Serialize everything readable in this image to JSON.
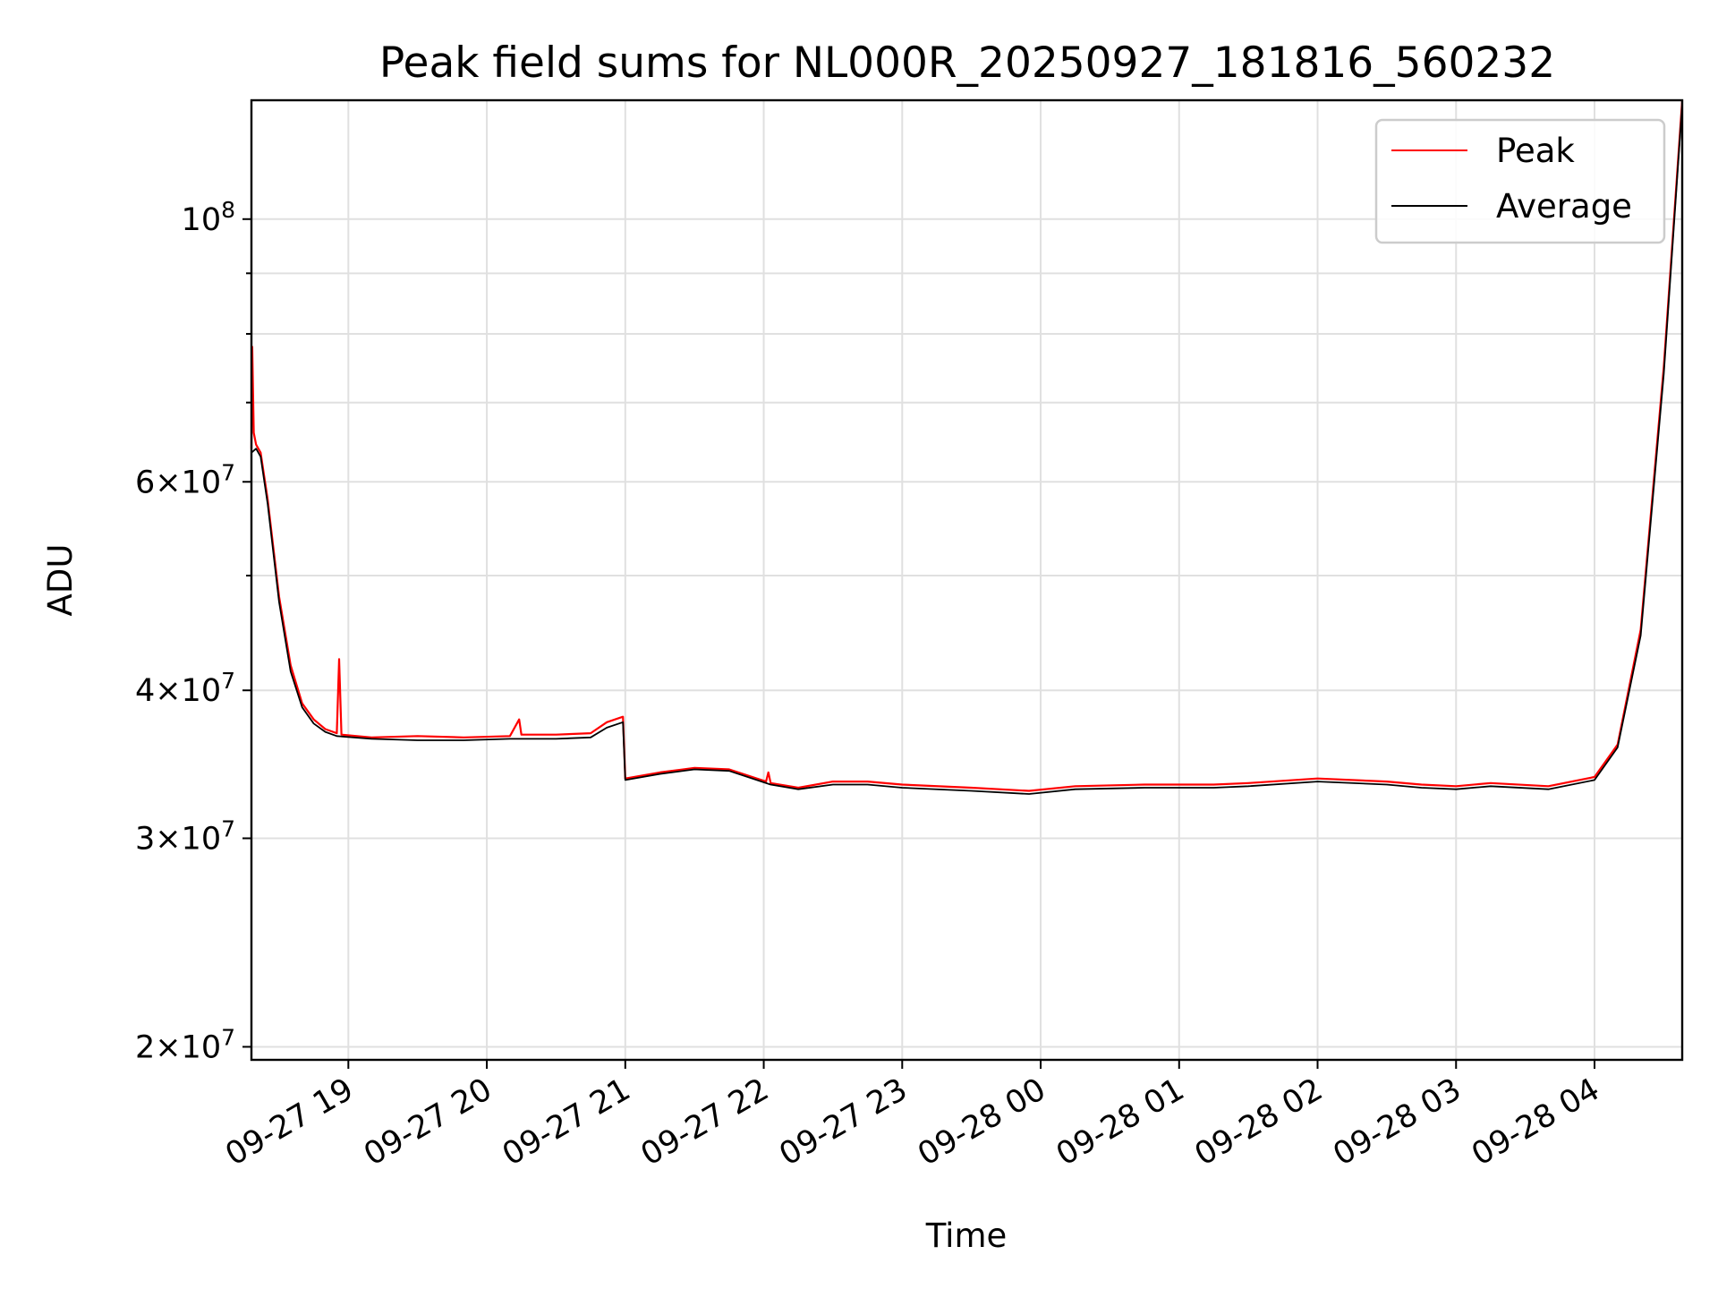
{
  "chart_data": {
    "type": "line",
    "title": "Peak field sums for NL000R_20250927_181816_560232",
    "xlabel": "Time",
    "ylabel": "ADU",
    "y_scale": "log",
    "ylim": [
      19500000,
      126000000
    ],
    "xlim": [
      "2025-09-27 18:18",
      "2025-09-28 04:38"
    ],
    "grid": true,
    "legend_position": "top-right",
    "x_ticks": [
      {
        "t": "2025-09-27 19:00",
        "label": "09-27 19"
      },
      {
        "t": "2025-09-27 20:00",
        "label": "09-27 20"
      },
      {
        "t": "2025-09-27 21:00",
        "label": "09-27 21"
      },
      {
        "t": "2025-09-27 22:00",
        "label": "09-27 22"
      },
      {
        "t": "2025-09-27 23:00",
        "label": "09-27 23"
      },
      {
        "t": "2025-09-28 00:00",
        "label": "09-28 00"
      },
      {
        "t": "2025-09-28 01:00",
        "label": "09-28 01"
      },
      {
        "t": "2025-09-28 02:00",
        "label": "09-28 02"
      },
      {
        "t": "2025-09-28 03:00",
        "label": "09-28 03"
      },
      {
        "t": "2025-09-28 04:00",
        "label": "09-28 04"
      }
    ],
    "y_major_ticks": [
      {
        "value": 20000000,
        "mant": "2",
        "exp": "7"
      },
      {
        "value": 30000000,
        "mant": "3",
        "exp": "7"
      },
      {
        "value": 40000000,
        "mant": "4",
        "exp": "7"
      },
      {
        "value": 60000000,
        "mant": "6",
        "exp": "7"
      },
      {
        "value": 100000000,
        "mant": "",
        "exp": "8"
      }
    ],
    "y_minor_ticks": [
      50000000,
      70000000,
      80000000,
      90000000
    ],
    "series": [
      {
        "name": "Peak",
        "color": "#ff0000",
        "points": [
          [
            "2025-09-27 18:18",
            64000000
          ],
          [
            "2025-09-27 18:18:20",
            78000000
          ],
          [
            "2025-09-27 18:19",
            66000000
          ],
          [
            "2025-09-27 18:20",
            64500000
          ],
          [
            "2025-09-27 18:22",
            63500000
          ],
          [
            "2025-09-27 18:25",
            58000000
          ],
          [
            "2025-09-27 18:30",
            48000000
          ],
          [
            "2025-09-27 18:35",
            42000000
          ],
          [
            "2025-09-27 18:40",
            39000000
          ],
          [
            "2025-09-27 18:45",
            37800000
          ],
          [
            "2025-09-27 18:50",
            37100000
          ],
          [
            "2025-09-27 18:55",
            36800000
          ],
          [
            "2025-09-27 18:56",
            42500000
          ],
          [
            "2025-09-27 18:57",
            36700000
          ],
          [
            "2025-09-27 19:10",
            36500000
          ],
          [
            "2025-09-27 19:30",
            36600000
          ],
          [
            "2025-09-27 19:50",
            36500000
          ],
          [
            "2025-09-27 20:10",
            36600000
          ],
          [
            "2025-09-27 20:14",
            37800000
          ],
          [
            "2025-09-27 20:15",
            36700000
          ],
          [
            "2025-09-27 20:30",
            36700000
          ],
          [
            "2025-09-27 20:45",
            36800000
          ],
          [
            "2025-09-27 20:52",
            37600000
          ],
          [
            "2025-09-27 20:59",
            38000000
          ],
          [
            "2025-09-27 21:00",
            33700000
          ],
          [
            "2025-09-27 21:15",
            34100000
          ],
          [
            "2025-09-27 21:30",
            34400000
          ],
          [
            "2025-09-27 21:45",
            34300000
          ],
          [
            "2025-09-27 22:01",
            33500000
          ],
          [
            "2025-09-27 22:02",
            34100000
          ],
          [
            "2025-09-27 22:03",
            33400000
          ],
          [
            "2025-09-27 22:15",
            33100000
          ],
          [
            "2025-09-27 22:30",
            33500000
          ],
          [
            "2025-09-27 22:45",
            33500000
          ],
          [
            "2025-09-27 23:00",
            33300000
          ],
          [
            "2025-09-27 23:30",
            33100000
          ],
          [
            "2025-09-27 23:55",
            32900000
          ],
          [
            "2025-09-28 00:15",
            33200000
          ],
          [
            "2025-09-28 00:45",
            33300000
          ],
          [
            "2025-09-28 01:15",
            33300000
          ],
          [
            "2025-09-28 01:30",
            33400000
          ],
          [
            "2025-09-28 02:00",
            33700000
          ],
          [
            "2025-09-28 02:30",
            33500000
          ],
          [
            "2025-09-28 02:45",
            33300000
          ],
          [
            "2025-09-28 03:00",
            33200000
          ],
          [
            "2025-09-28 03:15",
            33400000
          ],
          [
            "2025-09-28 03:40",
            33200000
          ],
          [
            "2025-09-28 04:00",
            33800000
          ],
          [
            "2025-09-28 04:10",
            36000000
          ],
          [
            "2025-09-28 04:20",
            45000000
          ],
          [
            "2025-09-28 04:30",
            75000000
          ],
          [
            "2025-09-28 04:38",
            126000000
          ]
        ]
      },
      {
        "name": "Average",
        "color": "#000000",
        "points": [
          [
            "2025-09-27 18:18",
            63500000
          ],
          [
            "2025-09-27 18:20",
            64000000
          ],
          [
            "2025-09-27 18:22",
            63000000
          ],
          [
            "2025-09-27 18:25",
            57500000
          ],
          [
            "2025-09-27 18:30",
            47500000
          ],
          [
            "2025-09-27 18:35",
            41500000
          ],
          [
            "2025-09-27 18:40",
            38700000
          ],
          [
            "2025-09-27 18:45",
            37500000
          ],
          [
            "2025-09-27 18:50",
            36900000
          ],
          [
            "2025-09-27 18:55",
            36600000
          ],
          [
            "2025-09-27 19:10",
            36400000
          ],
          [
            "2025-09-27 19:30",
            36300000
          ],
          [
            "2025-09-27 19:50",
            36300000
          ],
          [
            "2025-09-27 20:10",
            36400000
          ],
          [
            "2025-09-27 20:30",
            36400000
          ],
          [
            "2025-09-27 20:45",
            36500000
          ],
          [
            "2025-09-27 20:52",
            37200000
          ],
          [
            "2025-09-27 20:59",
            37600000
          ],
          [
            "2025-09-27 21:00",
            33600000
          ],
          [
            "2025-09-27 21:15",
            34000000
          ],
          [
            "2025-09-27 21:30",
            34300000
          ],
          [
            "2025-09-27 21:45",
            34200000
          ],
          [
            "2025-09-27 22:03",
            33300000
          ],
          [
            "2025-09-27 22:15",
            33000000
          ],
          [
            "2025-09-27 22:30",
            33300000
          ],
          [
            "2025-09-27 22:45",
            33300000
          ],
          [
            "2025-09-27 23:00",
            33100000
          ],
          [
            "2025-09-27 23:30",
            32900000
          ],
          [
            "2025-09-27 23:55",
            32700000
          ],
          [
            "2025-09-28 00:15",
            33000000
          ],
          [
            "2025-09-28 00:45",
            33100000
          ],
          [
            "2025-09-28 01:15",
            33100000
          ],
          [
            "2025-09-28 01:30",
            33200000
          ],
          [
            "2025-09-28 02:00",
            33500000
          ],
          [
            "2025-09-28 02:30",
            33300000
          ],
          [
            "2025-09-28 02:45",
            33100000
          ],
          [
            "2025-09-28 03:00",
            33000000
          ],
          [
            "2025-09-28 03:15",
            33200000
          ],
          [
            "2025-09-28 03:40",
            33000000
          ],
          [
            "2025-09-28 04:00",
            33600000
          ],
          [
            "2025-09-28 04:10",
            35800000
          ],
          [
            "2025-09-28 04:20",
            44500000
          ],
          [
            "2025-09-28 04:30",
            74000000
          ],
          [
            "2025-09-28 04:38",
            125000000
          ]
        ]
      }
    ]
  }
}
